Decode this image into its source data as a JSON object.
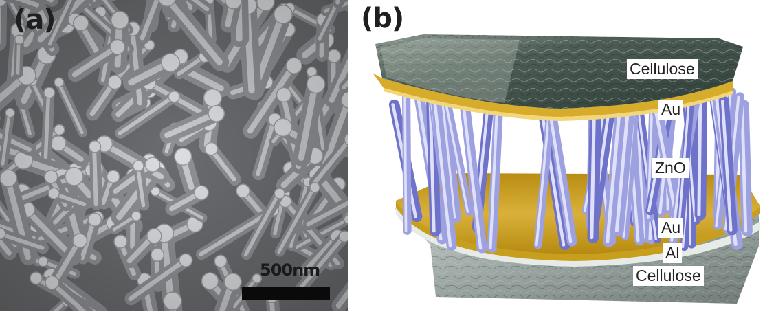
{
  "panel_a": {
    "label": "(a)",
    "scale_bar_text": "500nm"
  },
  "panel_b": {
    "label": "(b)",
    "layers": {
      "top_cellulose": "Cellulose",
      "top_electrode": "Au",
      "nanowires": "ZnO",
      "bottom_electrode": "Au",
      "bottom_metal": "Al",
      "bottom_cellulose": "Cellulose"
    }
  },
  "colors": {
    "sem_background": "#6f7174",
    "nanowire": "#9ea1df",
    "gold": "#d8ad26",
    "cellulose_top": "#5b6b62",
    "cellulose_bottom": "#a7aeaa"
  }
}
